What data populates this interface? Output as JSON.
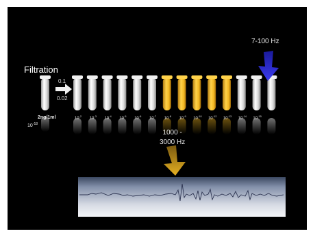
{
  "filtration_label": "Filtration",
  "ratio_top": "0.1",
  "ratio_bottom": "0.02",
  "source_concentration": "2ng/1ml",
  "source_exponent_base": "10",
  "source_exponent": "-18",
  "band_low": "7-100 Hz",
  "band_high_line1": "1000 -",
  "band_high_line2": "3000 Hz",
  "dilutions": [
    {
      "base": "10",
      "exp": "-2",
      "highlight": false
    },
    {
      "base": "10",
      "exp": "-3",
      "highlight": false
    },
    {
      "base": "10",
      "exp": "-4",
      "highlight": false
    },
    {
      "base": "10",
      "exp": "-5",
      "highlight": false
    },
    {
      "base": "10",
      "exp": "-6",
      "highlight": false
    },
    {
      "base": "10",
      "exp": "-7",
      "highlight": false
    },
    {
      "base": "10",
      "exp": "-8",
      "highlight": true
    },
    {
      "base": "10",
      "exp": "-9",
      "highlight": true
    },
    {
      "base": "10",
      "exp": "-10",
      "highlight": true
    },
    {
      "base": "10",
      "exp": "-12",
      "highlight": true
    },
    {
      "base": "10",
      "exp": "-13",
      "highlight": true
    },
    {
      "base": "10",
      "exp": "-14",
      "highlight": false
    },
    {
      "base": "10",
      "exp": "-15",
      "highlight": false
    },
    {
      "base": "",
      "exp": "",
      "highlight": false
    }
  ],
  "colors": {
    "background": "#000000",
    "tube_clear": "#e8e8e8",
    "tube_highlight": "#f2b721",
    "arrow_blue": "#2a2ad0",
    "arrow_gold": "#d9a520",
    "signal": "#2c3350"
  }
}
